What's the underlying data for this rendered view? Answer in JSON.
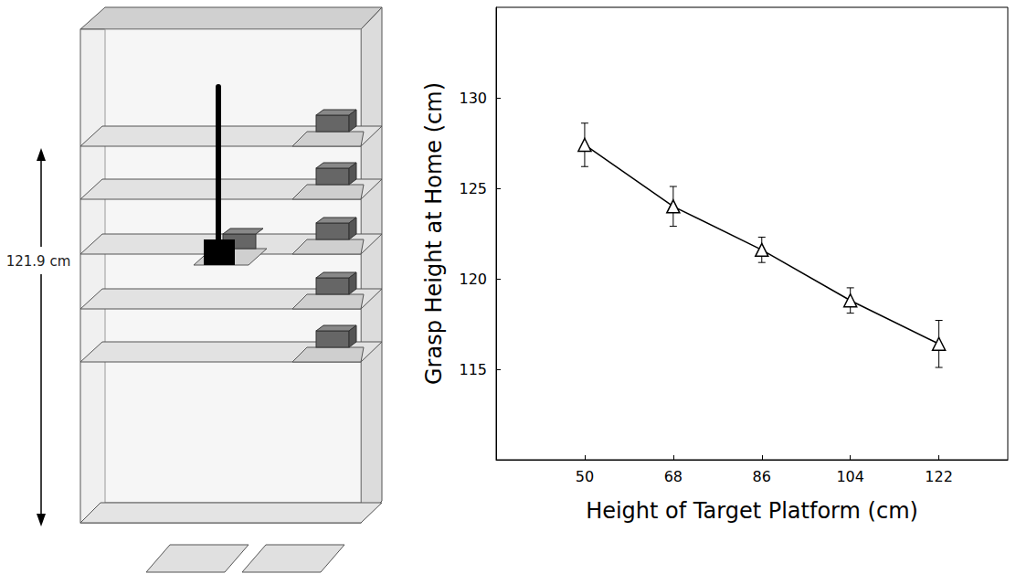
{
  "chart_data": {
    "type": "line",
    "x_label": "Height of Target Platform (cm)",
    "y_label": "Grasp Height at Home (cm)",
    "x": [
      50,
      68,
      86,
      104,
      122
    ],
    "values": [
      127.4,
      124.0,
      121.6,
      118.8,
      116.4
    ],
    "errors": [
      1.2,
      1.1,
      0.7,
      0.7,
      1.3
    ],
    "xlim": [
      32,
      136
    ],
    "xticks": [
      50,
      68,
      86,
      104,
      122
    ],
    "ylim": [
      110,
      135
    ],
    "yticks": [
      115,
      120,
      125,
      130
    ],
    "grid": false,
    "color": "#000000",
    "marker": "triangle",
    "line_style": "solid"
  },
  "diagram": {
    "height_label": "121.9 cm"
  }
}
